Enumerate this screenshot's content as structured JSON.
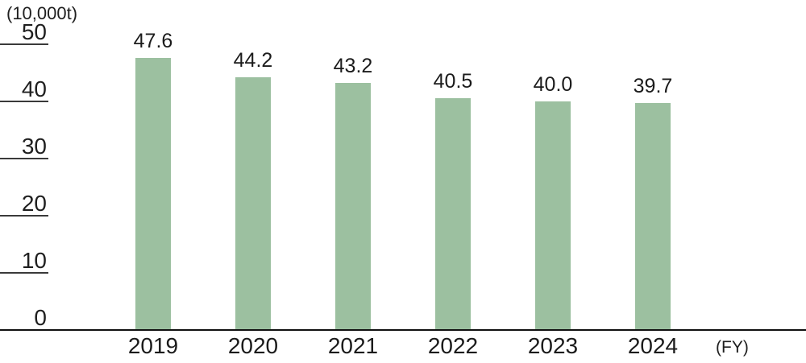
{
  "chart_data": {
    "type": "bar",
    "title": "",
    "unit_label": "(10,000t)",
    "fy_label": "(FY)",
    "categories": [
      "2019",
      "2020",
      "2021",
      "2022",
      "2023",
      "2024"
    ],
    "values": [
      47.6,
      44.2,
      43.2,
      40.5,
      40.0,
      39.7
    ],
    "value_labels": [
      "47.6",
      "44.2",
      "43.2",
      "40.5",
      "40.0",
      "39.7"
    ],
    "y_ticks": [
      50,
      40,
      30,
      20,
      10,
      0
    ],
    "ylim": [
      0,
      50
    ],
    "xlabel": "FY",
    "ylabel": "10,000t",
    "legend": "none",
    "grid": "left-stub-ticks-only",
    "bar_color": "#9cc0a0",
    "text_color": "#1f1f1f",
    "axis_color": "#111111",
    "tick_line_color": "#3a3a3a"
  }
}
